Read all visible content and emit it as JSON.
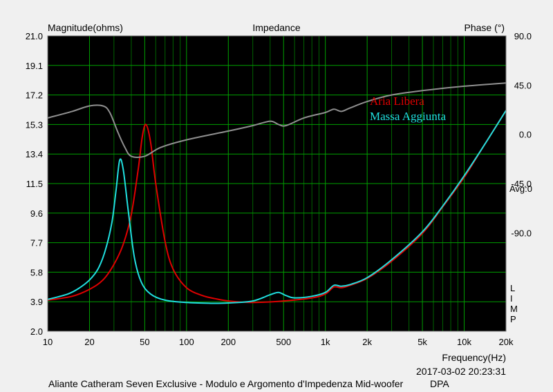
{
  "chart_data": {
    "type": "line",
    "title": "Impedance",
    "left_axis_label": "Magnitude(ohms)",
    "right_axis_label": "Phase (°)",
    "xlabel": "Frequency(Hz)",
    "x_scale": "log",
    "xlim": [
      10,
      20000
    ],
    "ylim": [
      2.0,
      21.0
    ],
    "phase_lim": [
      -180,
      90
    ],
    "x_ticks": [
      {
        "value": 10,
        "label": "10"
      },
      {
        "value": 20,
        "label": "20"
      },
      {
        "value": 50,
        "label": "50"
      },
      {
        "value": 100,
        "label": "100"
      },
      {
        "value": 200,
        "label": "200"
      },
      {
        "value": 500,
        "label": "500"
      },
      {
        "value": 1000,
        "label": "1k"
      },
      {
        "value": 2000,
        "label": "2k"
      },
      {
        "value": 5000,
        "label": "5k"
      },
      {
        "value": 10000,
        "label": "10k"
      },
      {
        "value": 20000,
        "label": "20k"
      }
    ],
    "y_ticks": [
      {
        "value": 21.0,
        "label": "21.0"
      },
      {
        "value": 19.1,
        "label": "19.1"
      },
      {
        "value": 17.2,
        "label": "17.2"
      },
      {
        "value": 15.3,
        "label": "15.3"
      },
      {
        "value": 13.4,
        "label": "13.4"
      },
      {
        "value": 11.5,
        "label": "11.5"
      },
      {
        "value": 9.6,
        "label": "9.6"
      },
      {
        "value": 7.7,
        "label": "7.7"
      },
      {
        "value": 5.8,
        "label": "5.8"
      },
      {
        "value": 3.9,
        "label": "3.9"
      },
      {
        "value": 2.0,
        "label": "2.0"
      }
    ],
    "phase_ticks": [
      {
        "value": 90,
        "label": "90.0"
      },
      {
        "value": 45,
        "label": "45.0"
      },
      {
        "value": 0,
        "label": "0.0"
      },
      {
        "value": -45,
        "label": "-45.0"
      },
      {
        "value": -90,
        "label": "-90.0"
      }
    ],
    "avg_label": "Avg:0",
    "side_letters": [
      "L",
      "I",
      "M",
      "P"
    ],
    "grid": true,
    "legend_position": "center-right",
    "series": [
      {
        "name": "Aria Libera",
        "axis": "magnitude",
        "color": "#e00000",
        "points": [
          [
            10,
            4.0
          ],
          [
            15,
            4.25
          ],
          [
            20,
            4.7
          ],
          [
            25,
            5.3
          ],
          [
            30,
            6.3
          ],
          [
            35,
            7.6
          ],
          [
            40,
            9.5
          ],
          [
            45,
            12.5
          ],
          [
            48,
            14.5
          ],
          [
            51,
            15.3
          ],
          [
            55,
            14.2
          ],
          [
            60,
            11.5
          ],
          [
            70,
            7.8
          ],
          [
            80,
            6.0
          ],
          [
            100,
            4.8
          ],
          [
            130,
            4.3
          ],
          [
            160,
            4.1
          ],
          [
            200,
            3.95
          ],
          [
            300,
            3.85
          ],
          [
            500,
            3.95
          ],
          [
            800,
            4.15
          ],
          [
            1000,
            4.4
          ],
          [
            1150,
            4.85
          ],
          [
            1300,
            4.8
          ],
          [
            1500,
            4.95
          ],
          [
            2000,
            5.4
          ],
          [
            3000,
            6.5
          ],
          [
            5000,
            8.3
          ],
          [
            7000,
            10.0
          ],
          [
            10000,
            11.9
          ],
          [
            14000,
            14.0
          ],
          [
            20000,
            16.2
          ]
        ]
      },
      {
        "name": "Massa Aggiunta",
        "axis": "magnitude",
        "color": "#20e0e0",
        "points": [
          [
            10,
            4.05
          ],
          [
            14,
            4.4
          ],
          [
            17,
            4.8
          ],
          [
            20,
            5.3
          ],
          [
            23,
            6.0
          ],
          [
            26,
            7.2
          ],
          [
            29,
            9.0
          ],
          [
            31,
            11.0
          ],
          [
            33,
            13.0
          ],
          [
            35,
            12.4
          ],
          [
            38,
            9.8
          ],
          [
            42,
            6.8
          ],
          [
            47,
            5.2
          ],
          [
            55,
            4.4
          ],
          [
            70,
            4.0
          ],
          [
            100,
            3.85
          ],
          [
            150,
            3.8
          ],
          [
            200,
            3.82
          ],
          [
            300,
            3.95
          ],
          [
            400,
            4.35
          ],
          [
            460,
            4.5
          ],
          [
            520,
            4.3
          ],
          [
            600,
            4.15
          ],
          [
            800,
            4.25
          ],
          [
            1000,
            4.5
          ],
          [
            1150,
            4.95
          ],
          [
            1300,
            4.9
          ],
          [
            1500,
            5.0
          ],
          [
            2000,
            5.45
          ],
          [
            3000,
            6.6
          ],
          [
            5000,
            8.4
          ],
          [
            7000,
            10.05
          ],
          [
            10000,
            12.0
          ],
          [
            14000,
            14.0
          ],
          [
            20000,
            16.2
          ]
        ]
      },
      {
        "name": "",
        "axis": "phase",
        "color": "#909090",
        "points": [
          [
            10,
            15
          ],
          [
            15,
            21
          ],
          [
            20,
            26
          ],
          [
            25,
            26
          ],
          [
            28,
            20
          ],
          [
            32,
            2
          ],
          [
            36,
            -12
          ],
          [
            40,
            -20
          ],
          [
            50,
            -20
          ],
          [
            65,
            -12
          ],
          [
            100,
            -5
          ],
          [
            200,
            3
          ],
          [
            300,
            8
          ],
          [
            400,
            12
          ],
          [
            460,
            9
          ],
          [
            520,
            8
          ],
          [
            700,
            15
          ],
          [
            1000,
            20
          ],
          [
            1150,
            23
          ],
          [
            1300,
            21
          ],
          [
            1500,
            24
          ],
          [
            2000,
            30
          ],
          [
            3000,
            36
          ],
          [
            5000,
            40
          ],
          [
            10000,
            44
          ],
          [
            20000,
            47
          ]
        ]
      }
    ]
  },
  "footer": {
    "timestamp": "2017-03-02 20:23:31",
    "caption": "Aliante Catheram Seven Exclusive - Modulo e Argomento d'Impedenza Mid-woofer",
    "software": "DPA"
  }
}
